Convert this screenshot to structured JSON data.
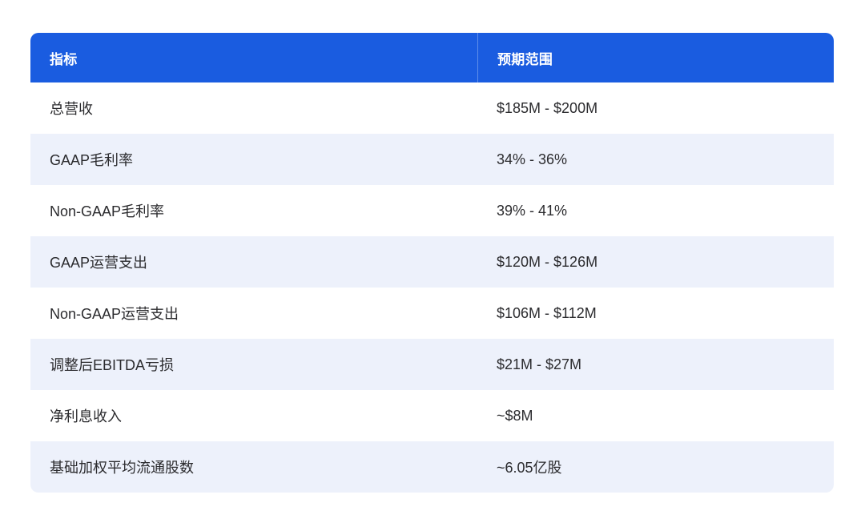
{
  "table": {
    "colors": {
      "header_bg": "#1a5ce0",
      "stripe_bg": "#edf1fb",
      "header_text": "#ffffff",
      "body_text": "#2b2b2e"
    },
    "columns": {
      "metric": "指标",
      "range": "预期范围"
    },
    "rows": [
      {
        "metric": "总营收",
        "range": "$185M - $200M"
      },
      {
        "metric": "GAAP毛利率",
        "range": "34% - 36%"
      },
      {
        "metric": "Non-GAAP毛利率",
        "range": "39% - 41%"
      },
      {
        "metric": "GAAP运营支出",
        "range": "$120M - $126M"
      },
      {
        "metric": "Non-GAAP运营支出",
        "range": "$106M - $112M"
      },
      {
        "metric": "调整后EBITDA亏损",
        "range": "$21M - $27M"
      },
      {
        "metric": "净利息收入",
        "range": "~$8M"
      },
      {
        "metric": "基础加权平均流通股数",
        "range": "~6.05亿股"
      }
    ]
  }
}
